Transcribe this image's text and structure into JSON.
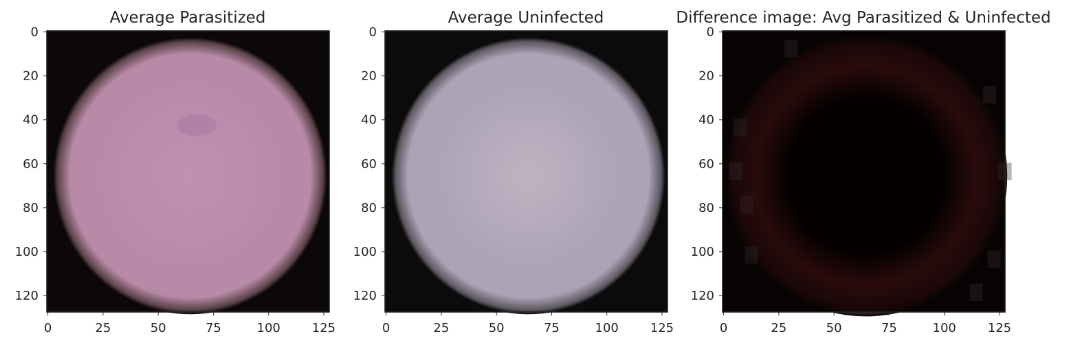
{
  "figure": {
    "panels": [
      {
        "title": "Average Parasitized",
        "image_kind": "parasitized",
        "colors": {
          "cell_center": "#c290b2",
          "cell_mid": "#b88aa8",
          "cell_edge": "#5a4248",
          "background": "#0c0808",
          "spot": "#a878a4"
        },
        "x_ticks": [
          "0",
          "25",
          "50",
          "75",
          "100",
          "125"
        ],
        "y_ticks": [
          "0",
          "20",
          "40",
          "60",
          "80",
          "100",
          "120"
        ]
      },
      {
        "title": "Average Uninfected",
        "image_kind": "uninfected",
        "colors": {
          "cell_center": "#bdb3c2",
          "cell_mid": "#ada3b7",
          "cell_edge": "#5c5860",
          "background": "#0c0a0b"
        },
        "x_ticks": [
          "0",
          "25",
          "50",
          "75",
          "100",
          "125"
        ],
        "y_ticks": [
          "0",
          "20",
          "40",
          "60",
          "80",
          "100",
          "120"
        ]
      },
      {
        "title": "Difference image: Avg Parasitized & Uninfected",
        "image_kind": "difference",
        "colors": {
          "center": "#050000",
          "ring": "#2a0b0c",
          "corner_noise": "#3a2a2e",
          "background": "#070303"
        },
        "x_ticks": [
          "0",
          "25",
          "50",
          "75",
          "100",
          "125"
        ],
        "y_ticks": [
          "0",
          "20",
          "40",
          "60",
          "80",
          "100",
          "120"
        ]
      }
    ]
  }
}
